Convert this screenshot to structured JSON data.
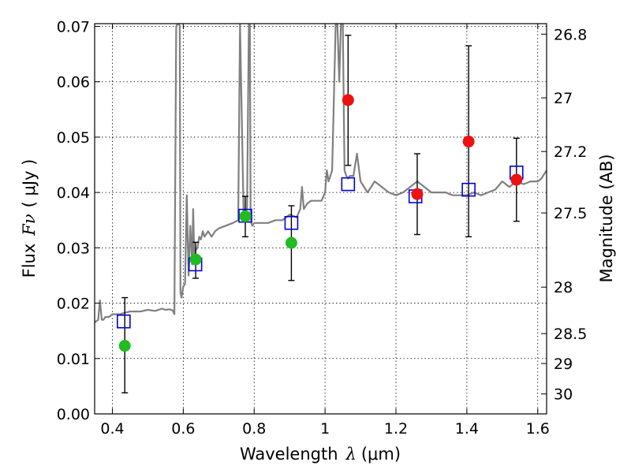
{
  "chart_data": {
    "type": "scatter",
    "title": "",
    "xlabel": "Wavelength",
    "xlabel_symbol": "λ",
    "xlabel_unit": "(μm)",
    "ylabel": "Flux",
    "ylabel_symbol": "Fν",
    "ylabel_unit": "( μJy )",
    "y2label": "Magnitude (AB)",
    "xlim": [
      0.35,
      1.625
    ],
    "ylim": [
      0.0,
      0.0705
    ],
    "grid": true,
    "x_ticks": [
      {
        "value": 0.4,
        "label": "0.4"
      },
      {
        "value": 0.6,
        "label": "0.6"
      },
      {
        "value": 0.8,
        "label": "0.8"
      },
      {
        "value": 1.0,
        "label": "1"
      },
      {
        "value": 1.2,
        "label": "1.2"
      },
      {
        "value": 1.4,
        "label": "1.4"
      },
      {
        "value": 1.6,
        "label": "1.6"
      }
    ],
    "y_ticks": [
      {
        "value": 0.0,
        "label": "0.00"
      },
      {
        "value": 0.01,
        "label": "0.01"
      },
      {
        "value": 0.02,
        "label": "0.02"
      },
      {
        "value": 0.03,
        "label": "0.03"
      },
      {
        "value": 0.04,
        "label": "0.04"
      },
      {
        "value": 0.05,
        "label": "0.05"
      },
      {
        "value": 0.06,
        "label": "0.06"
      },
      {
        "value": 0.07,
        "label": "0.07"
      }
    ],
    "y2_ticks": [
      {
        "flux": 0.0686,
        "label": "26.8"
      },
      {
        "flux": 0.0571,
        "label": "27"
      },
      {
        "flux": 0.0474,
        "label": "27.2"
      },
      {
        "flux": 0.0363,
        "label": "27.5"
      },
      {
        "flux": 0.0229,
        "label": "28"
      },
      {
        "flux": 0.0145,
        "label": "28.5"
      },
      {
        "flux": 0.0091,
        "label": "29"
      },
      {
        "flux": 0.0036,
        "label": "30"
      }
    ],
    "series": [
      {
        "kind": "spectrum",
        "color": "#808080",
        "x": [
          0.35,
          0.36,
          0.365,
          0.37,
          0.375,
          0.38,
          0.39,
          0.4,
          0.42,
          0.45,
          0.48,
          0.5,
          0.52,
          0.54,
          0.55,
          0.56,
          0.57,
          0.575,
          0.58,
          0.585,
          0.588,
          0.59,
          0.592,
          0.595,
          0.6,
          0.605,
          0.61,
          0.615,
          0.62,
          0.625,
          0.628,
          0.631,
          0.634,
          0.64,
          0.645,
          0.65,
          0.655,
          0.66,
          0.665,
          0.67,
          0.68,
          0.69,
          0.7,
          0.72,
          0.74,
          0.755,
          0.76,
          0.77,
          0.78,
          0.785,
          0.788,
          0.79,
          0.792,
          0.795,
          0.8,
          0.82,
          0.84,
          0.86,
          0.88,
          0.9,
          0.92,
          0.93,
          0.935,
          0.94,
          0.95,
          0.96,
          0.98,
          0.99,
          1.0,
          1.005,
          1.01,
          1.02,
          1.03,
          1.035,
          1.04,
          1.045,
          1.05,
          1.055,
          1.06,
          1.065,
          1.07,
          1.08,
          1.09,
          1.1,
          1.12,
          1.14,
          1.16,
          1.18,
          1.2,
          1.22,
          1.24,
          1.26,
          1.28,
          1.3,
          1.32,
          1.34,
          1.36,
          1.38,
          1.4,
          1.42,
          1.44,
          1.46,
          1.48,
          1.5,
          1.52,
          1.54,
          1.56,
          1.58,
          1.6,
          1.61,
          1.625
        ],
        "y": [
          0.0165,
          0.017,
          0.0205,
          0.017,
          0.017,
          0.0175,
          0.0175,
          0.018,
          0.018,
          0.0185,
          0.0185,
          0.0188,
          0.0186,
          0.019,
          0.0188,
          0.0189,
          0.0187,
          0.018,
          0.07,
          0.0705,
          0.0705,
          0.07,
          0.022,
          0.021,
          0.023,
          0.0235,
          0.0395,
          0.025,
          0.034,
          0.027,
          0.037,
          0.0285,
          0.0295,
          0.03,
          0.032,
          0.0315,
          0.033,
          0.032,
          0.0325,
          0.033,
          0.032,
          0.033,
          0.0335,
          0.034,
          0.0345,
          0.035,
          0.0705,
          0.0365,
          0.037,
          0.0705,
          0.0705,
          0.036,
          0.0345,
          0.034,
          0.0345,
          0.0345,
          0.0345,
          0.035,
          0.035,
          0.036,
          0.0355,
          0.037,
          0.041,
          0.037,
          0.038,
          0.0385,
          0.0385,
          0.0385,
          0.04,
          0.044,
          0.042,
          0.044,
          0.0705,
          0.0705,
          0.06,
          0.0705,
          0.0705,
          0.044,
          0.043,
          0.0425,
          0.043,
          0.043,
          0.047,
          0.042,
          0.04,
          0.042,
          0.041,
          0.04,
          0.0395,
          0.04,
          0.041,
          0.042,
          0.041,
          0.04,
          0.04,
          0.04,
          0.0395,
          0.0395,
          0.0395,
          0.04,
          0.0395,
          0.04,
          0.0405,
          0.042,
          0.041,
          0.042,
          0.0415,
          0.042,
          0.042,
          0.0425,
          0.044
        ]
      },
      {
        "kind": "model",
        "marker": "open-square",
        "color": "#0000dd",
        "points": [
          [
            0.432,
            0.0167
          ],
          [
            0.634,
            0.027
          ],
          [
            0.775,
            0.0358
          ],
          [
            0.905,
            0.0345
          ],
          [
            1.065,
            0.0415
          ],
          [
            1.255,
            0.0393
          ],
          [
            1.405,
            0.0405
          ],
          [
            1.54,
            0.0436
          ]
        ]
      },
      {
        "kind": "observed",
        "marker": "filled-circle",
        "color": "#22bb22",
        "points": [
          [
            0.435,
            0.0123
          ],
          [
            0.635,
            0.0279
          ],
          [
            0.775,
            0.0357
          ],
          [
            0.905,
            0.0309
          ]
        ]
      },
      {
        "kind": "observed",
        "marker": "filled-circle",
        "color": "#ee1111",
        "points": [
          [
            1.065,
            0.0567
          ],
          [
            1.26,
            0.0397
          ],
          [
            1.405,
            0.0492
          ],
          [
            1.54,
            0.0423
          ]
        ]
      },
      {
        "kind": "errorbars",
        "color": "#000000",
        "bars": [
          [
            0.435,
            0.0038,
            0.021
          ],
          [
            0.635,
            0.0245,
            0.031
          ],
          [
            0.775,
            0.032,
            0.0393
          ],
          [
            0.905,
            0.0241,
            0.0376
          ],
          [
            1.065,
            0.0449,
            0.0684
          ],
          [
            1.26,
            0.0324,
            0.047
          ],
          [
            1.405,
            0.032,
            0.0665
          ],
          [
            1.54,
            0.0348,
            0.0498
          ]
        ]
      }
    ]
  }
}
